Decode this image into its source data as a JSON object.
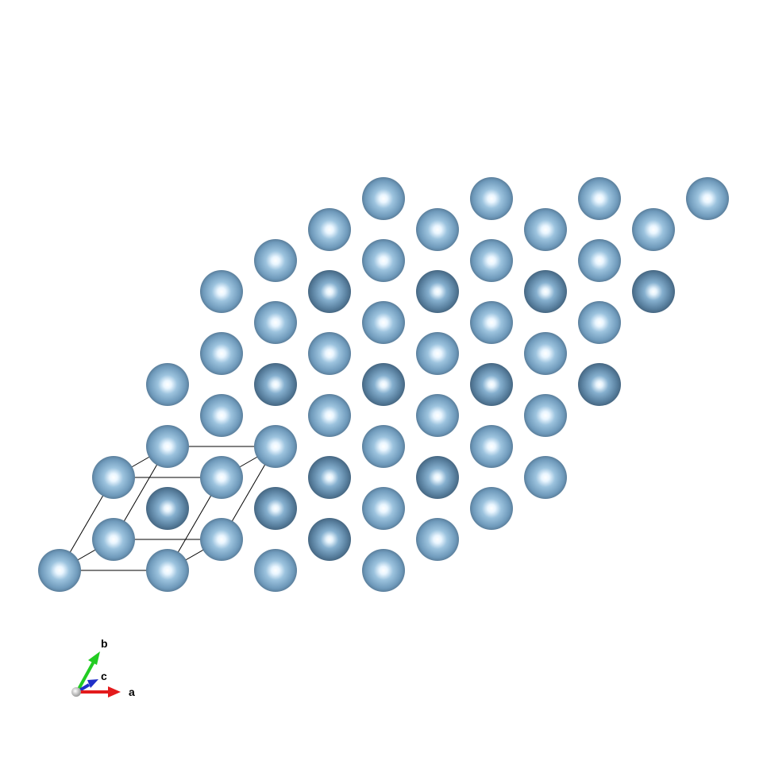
{
  "structure": {
    "atom_color": "#7aa6c8",
    "atom_dark_color": "#5e86a6",
    "highlight_color": "#ffffff",
    "cell_line_color": "#000000"
  },
  "axes": {
    "a": {
      "label": "a",
      "color": "#e31a1c"
    },
    "b": {
      "label": "b",
      "color": "#22cc22"
    },
    "c": {
      "label": "c",
      "color": "#1f2fc8"
    },
    "origin_color": "#c8c8c8"
  }
}
